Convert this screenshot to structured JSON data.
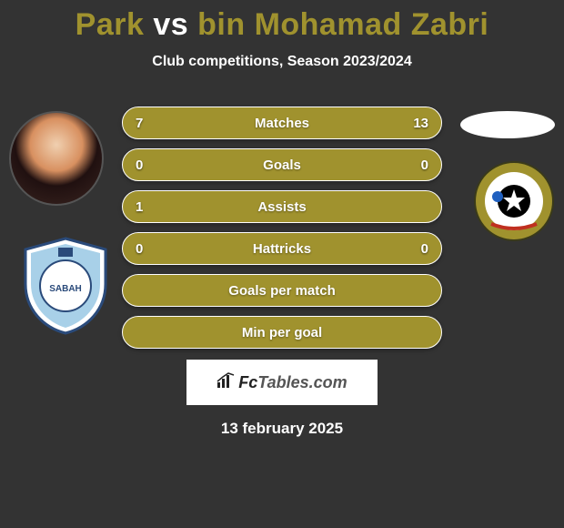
{
  "title": {
    "player1": "Park",
    "vs": "vs",
    "player2": "bin Mohamad Zabri",
    "color_player1": "#a0922e",
    "color_vs": "#ffffff",
    "color_player2": "#a0922e"
  },
  "subtitle": "Club competitions, Season 2023/2024",
  "bars": [
    {
      "label": "Matches",
      "left": "7",
      "right": "13",
      "left_pct": 35,
      "right_pct": 65,
      "bg": "#a0922e",
      "fill_left": "#a0922e",
      "fill_right": "#a0922e"
    },
    {
      "label": "Goals",
      "left": "0",
      "right": "0",
      "left_pct": 0,
      "right_pct": 0,
      "bg": "#a0922e",
      "fill_left": "#a0922e",
      "fill_right": "#a0922e"
    },
    {
      "label": "Assists",
      "left": "1",
      "right": "",
      "left_pct": 100,
      "right_pct": 0,
      "bg": "#a0922e",
      "fill_left": "#a0922e",
      "fill_right": "#a0922e"
    },
    {
      "label": "Hattricks",
      "left": "0",
      "right": "0",
      "left_pct": 0,
      "right_pct": 0,
      "bg": "#a0922e",
      "fill_left": "#a0922e",
      "fill_right": "#a0922e"
    },
    {
      "label": "Goals per match",
      "left": "",
      "right": "",
      "left_pct": 0,
      "right_pct": 0,
      "bg": "#a0922e",
      "fill_left": "#a0922e",
      "fill_right": "#a0922e"
    },
    {
      "label": "Min per goal",
      "left": "",
      "right": "",
      "left_pct": 0,
      "right_pct": 0,
      "bg": "#a0922e",
      "fill_left": "#a0922e",
      "fill_right": "#a0922e"
    }
  ],
  "footer": {
    "brand_prefix": "Fc",
    "brand_suffix": "Tables.com",
    "date": "13 february 2025"
  },
  "colors": {
    "background": "#333333",
    "accent": "#a0922e",
    "white": "#ffffff"
  }
}
